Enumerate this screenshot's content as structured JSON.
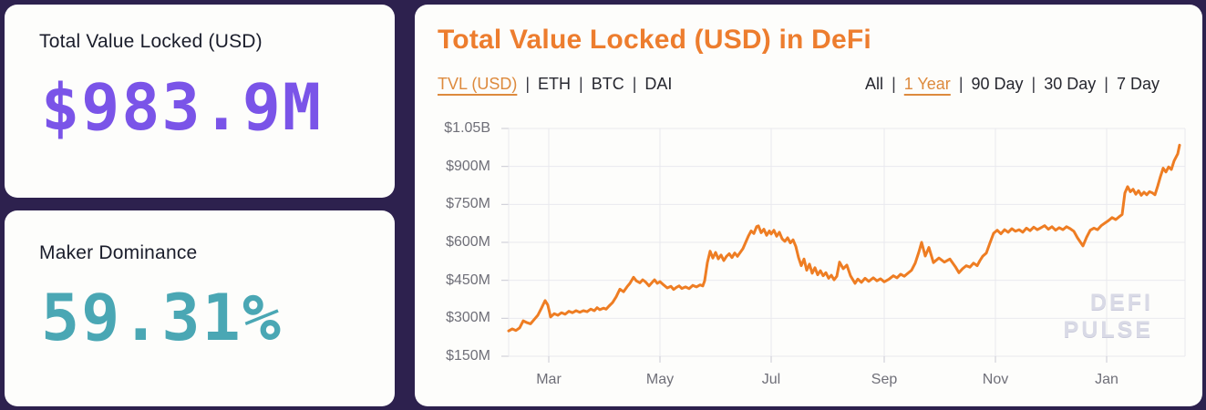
{
  "theme": {
    "background": "#2d214e",
    "card_background": "#fdfdfb",
    "accent_orange": "#ed7d2e",
    "accent_purple": "#7a54e8",
    "accent_teal": "#4aa7b4",
    "axis_text_color": "#6f6f78",
    "grid_color": "#e9e9ee",
    "watermark_color": "#d9dae6"
  },
  "cards": [
    {
      "label": "Total Value Locked (USD)",
      "value": "$983.9M"
    },
    {
      "label": "Maker Dominance",
      "value": "59.31%"
    }
  ],
  "chart": {
    "title": "Total Value Locked (USD) in DeFi",
    "separator": "|",
    "series_tabs": [
      {
        "label": "TVL (USD)",
        "active": true
      },
      {
        "label": "ETH",
        "active": false
      },
      {
        "label": "BTC",
        "active": false
      },
      {
        "label": "DAI",
        "active": false
      }
    ],
    "range_tabs": [
      {
        "label": "All",
        "active": false
      },
      {
        "label": "1 Year",
        "active": true
      },
      {
        "label": "90 Day",
        "active": false
      },
      {
        "label": "30 Day",
        "active": false
      },
      {
        "label": "7 Day",
        "active": false
      }
    ],
    "watermark": [
      "DEFI",
      "PULSE"
    ]
  },
  "chart_data": {
    "type": "line",
    "title": "Total Value Locked (USD) in DeFi",
    "series_name": "TVL (USD)",
    "line_color": "#ee7d23",
    "legend": "none",
    "grid": true,
    "units": {
      "x": "day index within the displayed 1-year window",
      "y": "million USD"
    },
    "x_ticks": [
      "Mar",
      "May",
      "Jul",
      "Sep",
      "Nov",
      "Jan"
    ],
    "x_tick_positions": [
      22,
      83,
      144,
      206,
      267,
      328
    ],
    "x_range": [
      0,
      371
    ],
    "y_ticks": [
      "$1.05B",
      "$900M",
      "$750M",
      "$600M",
      "$450M",
      "$300M",
      "$150M"
    ],
    "y_tick_values": [
      1050,
      900,
      750,
      600,
      450,
      300,
      150
    ],
    "ylim": [
      150,
      1050
    ],
    "points": [
      [
        0,
        250
      ],
      [
        2,
        258
      ],
      [
        4,
        252
      ],
      [
        6,
        262
      ],
      [
        8,
        290
      ],
      [
        10,
        283
      ],
      [
        12,
        278
      ],
      [
        14,
        295
      ],
      [
        16,
        312
      ],
      [
        18,
        340
      ],
      [
        20,
        370
      ],
      [
        21.5,
        352
      ],
      [
        23,
        305
      ],
      [
        25,
        318
      ],
      [
        27,
        312
      ],
      [
        29,
        322
      ],
      [
        31,
        316
      ],
      [
        33,
        328
      ],
      [
        35,
        322
      ],
      [
        37,
        330
      ],
      [
        39,
        324
      ],
      [
        41,
        330
      ],
      [
        43,
        326
      ],
      [
        45,
        336
      ],
      [
        47,
        330
      ],
      [
        48.5,
        342
      ],
      [
        50,
        334
      ],
      [
        52,
        340
      ],
      [
        53.5,
        336
      ],
      [
        55,
        348
      ],
      [
        57,
        362
      ],
      [
        59,
        385
      ],
      [
        61,
        415
      ],
      [
        63,
        405
      ],
      [
        65,
        425
      ],
      [
        66.5,
        438
      ],
      [
        68.5,
        462
      ],
      [
        70,
        448
      ],
      [
        72,
        440
      ],
      [
        73.5,
        452
      ],
      [
        75,
        444
      ],
      [
        77,
        428
      ],
      [
        78.5,
        440
      ],
      [
        80,
        452
      ],
      [
        81.5,
        438
      ],
      [
        83,
        445
      ],
      [
        85,
        432
      ],
      [
        87,
        420
      ],
      [
        89,
        426
      ],
      [
        90.5,
        414
      ],
      [
        92,
        422
      ],
      [
        93.5,
        428
      ],
      [
        95,
        418
      ],
      [
        97,
        424
      ],
      [
        99,
        417
      ],
      [
        101,
        430
      ],
      [
        103,
        424
      ],
      [
        105,
        432
      ],
      [
        106.5,
        428
      ],
      [
        107.5,
        448
      ],
      [
        109,
        520
      ],
      [
        110.5,
        565
      ],
      [
        112,
        538
      ],
      [
        113.5,
        560
      ],
      [
        115,
        535
      ],
      [
        116.5,
        550
      ],
      [
        118,
        528
      ],
      [
        119.5,
        545
      ],
      [
        121,
        555
      ],
      [
        122.5,
        540
      ],
      [
        124,
        558
      ],
      [
        125.5,
        545
      ],
      [
        127,
        560
      ],
      [
        128.5,
        575
      ],
      [
        130,
        600
      ],
      [
        131.5,
        625
      ],
      [
        133,
        645
      ],
      [
        134.5,
        635
      ],
      [
        136,
        662
      ],
      [
        137,
        665
      ],
      [
        138.5,
        638
      ],
      [
        140,
        652
      ],
      [
        141.5,
        628
      ],
      [
        143,
        645
      ],
      [
        144,
        633
      ],
      [
        145.5,
        648
      ],
      [
        147,
        624
      ],
      [
        148.5,
        640
      ],
      [
        150,
        614
      ],
      [
        151.5,
        604
      ],
      [
        153,
        618
      ],
      [
        154.5,
        598
      ],
      [
        156,
        610
      ],
      [
        157.5,
        584
      ],
      [
        159,
        540
      ],
      [
        160.5,
        508
      ],
      [
        162,
        534
      ],
      [
        163.5,
        490
      ],
      [
        165,
        514
      ],
      [
        166.5,
        478
      ],
      [
        168,
        500
      ],
      [
        169.5,
        472
      ],
      [
        171,
        488
      ],
      [
        172.5,
        468
      ],
      [
        174,
        480
      ],
      [
        175.5,
        458
      ],
      [
        177,
        470
      ],
      [
        178.5,
        452
      ],
      [
        180,
        466
      ],
      [
        181.5,
        522
      ],
      [
        183.5,
        496
      ],
      [
        185.5,
        510
      ],
      [
        187.5,
        468
      ],
      [
        190,
        438
      ],
      [
        191.5,
        455
      ],
      [
        193.5,
        442
      ],
      [
        195.5,
        458
      ],
      [
        197.5,
        446
      ],
      [
        200,
        460
      ],
      [
        202,
        448
      ],
      [
        204,
        456
      ],
      [
        206,
        444
      ],
      [
        208.5,
        454
      ],
      [
        211,
        468
      ],
      [
        213,
        460
      ],
      [
        215,
        474
      ],
      [
        217,
        466
      ],
      [
        219,
        478
      ],
      [
        221,
        490
      ],
      [
        223,
        518
      ],
      [
        225,
        562
      ],
      [
        226.5,
        600
      ],
      [
        228.5,
        546
      ],
      [
        230.5,
        580
      ],
      [
        233,
        520
      ],
      [
        236,
        538
      ],
      [
        239,
        522
      ],
      [
        242,
        534
      ],
      [
        245,
        504
      ],
      [
        247,
        480
      ],
      [
        249,
        496
      ],
      [
        251,
        508
      ],
      [
        253,
        502
      ],
      [
        255,
        518
      ],
      [
        257,
        508
      ],
      [
        258.5,
        528
      ],
      [
        260,
        545
      ],
      [
        262,
        558
      ],
      [
        264,
        598
      ],
      [
        266,
        636
      ],
      [
        268,
        648
      ],
      [
        270,
        634
      ],
      [
        272,
        650
      ],
      [
        274,
        640
      ],
      [
        276,
        654
      ],
      [
        278,
        644
      ],
      [
        280,
        650
      ],
      [
        282,
        640
      ],
      [
        284,
        656
      ],
      [
        286,
        646
      ],
      [
        288,
        660
      ],
      [
        290,
        650
      ],
      [
        292,
        658
      ],
      [
        294,
        666
      ],
      [
        296,
        652
      ],
      [
        298,
        662
      ],
      [
        300,
        648
      ],
      [
        302,
        658
      ],
      [
        304,
        650
      ],
      [
        306,
        662
      ],
      [
        308,
        654
      ],
      [
        310,
        644
      ],
      [
        312,
        618
      ],
      [
        315,
        586
      ],
      [
        317,
        620
      ],
      [
        319,
        648
      ],
      [
        321,
        656
      ],
      [
        323,
        650
      ],
      [
        325,
        666
      ],
      [
        327,
        676
      ],
      [
        329,
        686
      ],
      [
        331,
        698
      ],
      [
        333,
        690
      ],
      [
        335,
        702
      ],
      [
        336.5,
        710
      ],
      [
        338,
        795
      ],
      [
        339.5,
        820
      ],
      [
        341,
        800
      ],
      [
        342.5,
        810
      ],
      [
        344,
        790
      ],
      [
        345.5,
        804
      ],
      [
        347,
        786
      ],
      [
        348.5,
        798
      ],
      [
        350,
        788
      ],
      [
        351.5,
        800
      ],
      [
        353,
        796
      ],
      [
        354.5,
        788
      ],
      [
        356,
        822
      ],
      [
        357.5,
        860
      ],
      [
        359,
        893
      ],
      [
        360.5,
        878
      ],
      [
        362,
        898
      ],
      [
        363.5,
        888
      ],
      [
        365,
        922
      ],
      [
        366,
        936
      ],
      [
        367,
        950
      ],
      [
        368,
        984
      ]
    ]
  }
}
